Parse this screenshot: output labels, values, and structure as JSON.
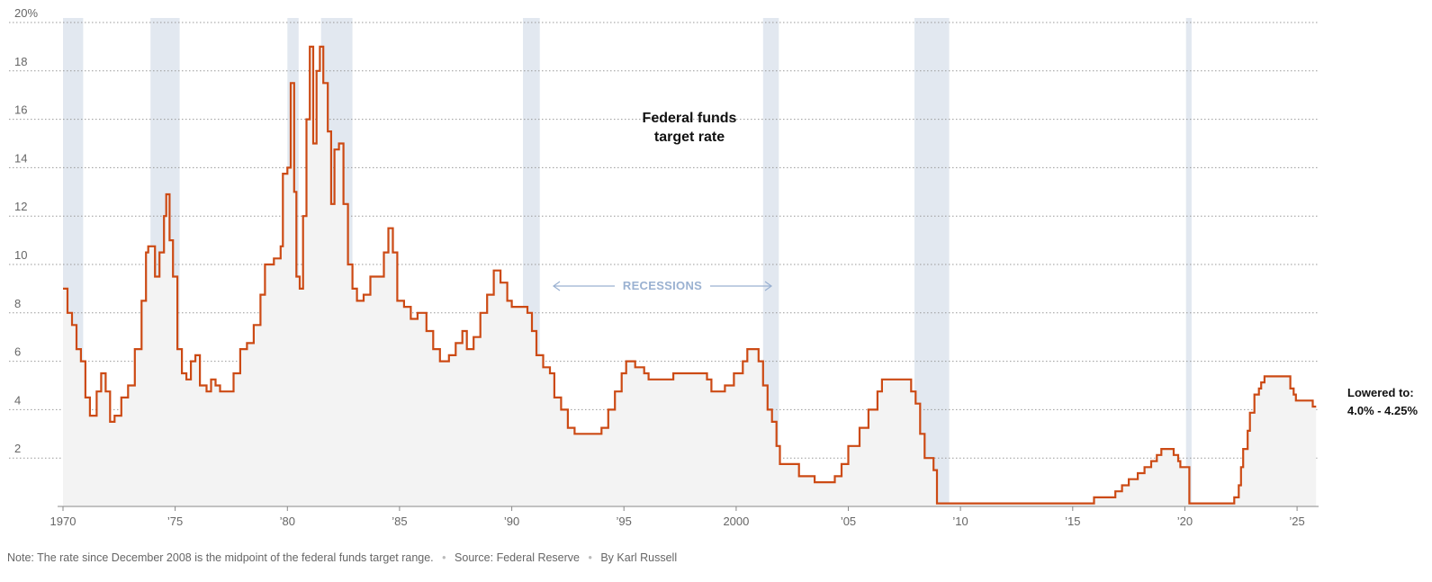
{
  "chart_data": {
    "type": "line",
    "title": "Federal funds target rate",
    "title_lines": [
      "Federal funds",
      "target rate"
    ],
    "y_unit": "%",
    "ylim": [
      0,
      20
    ],
    "x_range": [
      1970,
      2025.85
    ],
    "y_ticks": [
      {
        "value": 2,
        "label": "2"
      },
      {
        "value": 4,
        "label": "4"
      },
      {
        "value": 6,
        "label": "6"
      },
      {
        "value": 8,
        "label": "8"
      },
      {
        "value": 10,
        "label": "10"
      },
      {
        "value": 12,
        "label": "12"
      },
      {
        "value": 14,
        "label": "14"
      },
      {
        "value": 16,
        "label": "16"
      },
      {
        "value": 18,
        "label": "18"
      },
      {
        "value": 20,
        "label": "20%"
      }
    ],
    "x_ticks": [
      {
        "value": 1970,
        "label": "1970"
      },
      {
        "value": 1975,
        "label": "’75"
      },
      {
        "value": 1980,
        "label": "’80"
      },
      {
        "value": 1985,
        "label": "’85"
      },
      {
        "value": 1990,
        "label": "’90"
      },
      {
        "value": 1995,
        "label": "’95"
      },
      {
        "value": 2000,
        "label": "2000"
      },
      {
        "value": 2005,
        "label": "’05"
      },
      {
        "value": 2010,
        "label": "’10"
      },
      {
        "value": 2015,
        "label": "’15"
      },
      {
        "value": 2020,
        "label": "’20"
      },
      {
        "value": 2025,
        "label": "’25"
      }
    ],
    "recessions": [
      [
        1970.0,
        1970.9
      ],
      [
        1973.9,
        1975.2
      ],
      [
        1980.0,
        1980.5
      ],
      [
        1981.5,
        1982.9
      ],
      [
        1990.5,
        1991.25
      ],
      [
        2001.2,
        2001.9
      ],
      [
        2007.95,
        2009.5
      ],
      [
        2020.05,
        2020.3
      ]
    ],
    "recessions_label": "RECESSIONS",
    "end_label_lines": [
      "Lowered to:",
      "4.0% - 4.25%"
    ],
    "series": [
      {
        "name": "Federal funds target rate",
        "color": "#cc4a14",
        "points": [
          [
            1970.0,
            9.0
          ],
          [
            1970.2,
            8.0
          ],
          [
            1970.4,
            7.5
          ],
          [
            1970.6,
            6.5
          ],
          [
            1970.8,
            6.0
          ],
          [
            1971.0,
            4.5
          ],
          [
            1971.2,
            3.75
          ],
          [
            1971.5,
            4.75
          ],
          [
            1971.7,
            5.5
          ],
          [
            1971.9,
            4.75
          ],
          [
            1972.1,
            3.5
          ],
          [
            1972.3,
            3.75
          ],
          [
            1972.6,
            4.5
          ],
          [
            1972.9,
            5.0
          ],
          [
            1973.2,
            6.5
          ],
          [
            1973.5,
            8.5
          ],
          [
            1973.7,
            10.5
          ],
          [
            1973.8,
            10.75
          ],
          [
            1974.1,
            9.5
          ],
          [
            1974.3,
            10.5
          ],
          [
            1974.5,
            12.0
          ],
          [
            1974.6,
            12.9
          ],
          [
            1974.75,
            11.0
          ],
          [
            1974.9,
            9.5
          ],
          [
            1975.1,
            6.5
          ],
          [
            1975.3,
            5.5
          ],
          [
            1975.5,
            5.25
          ],
          [
            1975.7,
            6.0
          ],
          [
            1975.9,
            6.25
          ],
          [
            1976.1,
            5.0
          ],
          [
            1976.4,
            4.75
          ],
          [
            1976.6,
            5.25
          ],
          [
            1976.8,
            5.0
          ],
          [
            1977.0,
            4.75
          ],
          [
            1977.3,
            4.75
          ],
          [
            1977.6,
            5.5
          ],
          [
            1977.9,
            6.5
          ],
          [
            1978.2,
            6.75
          ],
          [
            1978.5,
            7.5
          ],
          [
            1978.8,
            8.75
          ],
          [
            1979.0,
            10.0
          ],
          [
            1979.4,
            10.25
          ],
          [
            1979.7,
            10.75
          ],
          [
            1979.8,
            13.75
          ],
          [
            1980.0,
            14.0
          ],
          [
            1980.15,
            17.5
          ],
          [
            1980.3,
            13.0
          ],
          [
            1980.4,
            9.5
          ],
          [
            1980.55,
            9.0
          ],
          [
            1980.7,
            12.0
          ],
          [
            1980.85,
            16.0
          ],
          [
            1981.0,
            19.0
          ],
          [
            1981.15,
            15.0
          ],
          [
            1981.3,
            18.0
          ],
          [
            1981.45,
            19.0
          ],
          [
            1981.6,
            17.5
          ],
          [
            1981.8,
            15.5
          ],
          [
            1981.95,
            12.5
          ],
          [
            1982.1,
            14.75
          ],
          [
            1982.3,
            15.0
          ],
          [
            1982.5,
            12.5
          ],
          [
            1982.7,
            10.0
          ],
          [
            1982.9,
            9.0
          ],
          [
            1983.1,
            8.5
          ],
          [
            1983.4,
            8.75
          ],
          [
            1983.7,
            9.5
          ],
          [
            1984.0,
            9.5
          ],
          [
            1984.3,
            10.5
          ],
          [
            1984.5,
            11.5
          ],
          [
            1984.7,
            10.5
          ],
          [
            1984.9,
            8.5
          ],
          [
            1985.2,
            8.25
          ],
          [
            1985.5,
            7.75
          ],
          [
            1985.8,
            8.0
          ],
          [
            1986.2,
            7.25
          ],
          [
            1986.5,
            6.5
          ],
          [
            1986.8,
            6.0
          ],
          [
            1987.2,
            6.25
          ],
          [
            1987.5,
            6.75
          ],
          [
            1987.8,
            7.25
          ],
          [
            1988.0,
            6.5
          ],
          [
            1988.3,
            7.0
          ],
          [
            1988.6,
            8.0
          ],
          [
            1988.9,
            8.75
          ],
          [
            1989.2,
            9.75
          ],
          [
            1989.5,
            9.25
          ],
          [
            1989.8,
            8.5
          ],
          [
            1990.0,
            8.25
          ],
          [
            1990.4,
            8.25
          ],
          [
            1990.7,
            8.0
          ],
          [
            1990.9,
            7.25
          ],
          [
            1991.1,
            6.25
          ],
          [
            1991.4,
            5.75
          ],
          [
            1991.7,
            5.5
          ],
          [
            1991.9,
            4.5
          ],
          [
            1992.2,
            4.0
          ],
          [
            1992.5,
            3.25
          ],
          [
            1992.8,
            3.0
          ],
          [
            1993.5,
            3.0
          ],
          [
            1994.0,
            3.25
          ],
          [
            1994.3,
            4.0
          ],
          [
            1994.6,
            4.75
          ],
          [
            1994.9,
            5.5
          ],
          [
            1995.1,
            6.0
          ],
          [
            1995.5,
            5.75
          ],
          [
            1995.9,
            5.5
          ],
          [
            1996.1,
            5.25
          ],
          [
            1997.2,
            5.5
          ],
          [
            1998.7,
            5.25
          ],
          [
            1998.9,
            4.75
          ],
          [
            1999.5,
            5.0
          ],
          [
            1999.9,
            5.5
          ],
          [
            2000.3,
            6.0
          ],
          [
            2000.5,
            6.5
          ],
          [
            2001.0,
            6.0
          ],
          [
            2001.2,
            5.0
          ],
          [
            2001.4,
            4.0
          ],
          [
            2001.6,
            3.5
          ],
          [
            2001.8,
            2.5
          ],
          [
            2001.95,
            1.75
          ],
          [
            2002.8,
            1.25
          ],
          [
            2003.5,
            1.0
          ],
          [
            2004.4,
            1.25
          ],
          [
            2004.7,
            1.75
          ],
          [
            2005.0,
            2.5
          ],
          [
            2005.5,
            3.25
          ],
          [
            2005.9,
            4.0
          ],
          [
            2006.3,
            4.75
          ],
          [
            2006.5,
            5.25
          ],
          [
            2007.6,
            5.25
          ],
          [
            2007.8,
            4.75
          ],
          [
            2008.0,
            4.25
          ],
          [
            2008.2,
            3.0
          ],
          [
            2008.4,
            2.0
          ],
          [
            2008.8,
            1.5
          ],
          [
            2008.95,
            0.125
          ],
          [
            2015.95,
            0.375
          ],
          [
            2016.9,
            0.625
          ],
          [
            2017.2,
            0.875
          ],
          [
            2017.5,
            1.125
          ],
          [
            2017.9,
            1.375
          ],
          [
            2018.2,
            1.625
          ],
          [
            2018.5,
            1.875
          ],
          [
            2018.75,
            2.125
          ],
          [
            2018.95,
            2.375
          ],
          [
            2019.5,
            2.125
          ],
          [
            2019.7,
            1.875
          ],
          [
            2019.8,
            1.625
          ],
          [
            2020.2,
            0.125
          ],
          [
            2022.2,
            0.375
          ],
          [
            2022.4,
            0.875
          ],
          [
            2022.5,
            1.625
          ],
          [
            2022.6,
            2.375
          ],
          [
            2022.8,
            3.125
          ],
          [
            2022.9,
            3.875
          ],
          [
            2023.1,
            4.625
          ],
          [
            2023.3,
            4.875
          ],
          [
            2023.4,
            5.125
          ],
          [
            2023.55,
            5.375
          ],
          [
            2024.7,
            4.875
          ],
          [
            2024.85,
            4.625
          ],
          [
            2024.95,
            4.375
          ],
          [
            2025.7,
            4.125
          ],
          [
            2025.85,
            4.125
          ]
        ]
      }
    ]
  },
  "footer": {
    "note": "Note: The rate since December 2008 is the midpoint of the federal funds target range.",
    "source": "Source: Federal Reserve",
    "byline": "By Karl Russell",
    "separator": "•"
  }
}
